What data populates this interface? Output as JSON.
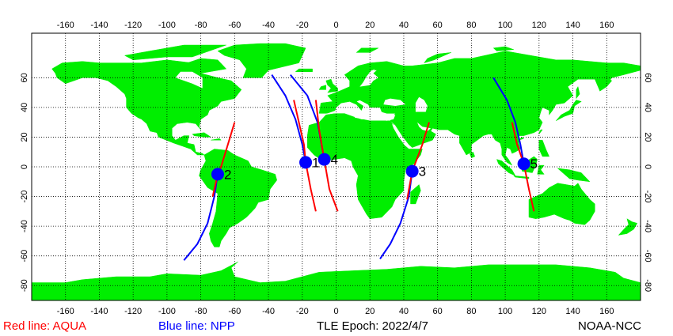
{
  "map": {
    "land_color": "#00ee00",
    "ocean_color": "#ffffff",
    "grid_color": "#000000",
    "lon_ticks": [
      -160,
      -140,
      -120,
      -100,
      -80,
      -60,
      -40,
      -20,
      0,
      20,
      40,
      60,
      80,
      100,
      120,
      140,
      160
    ],
    "lat_ticks": [
      60,
      40,
      20,
      0,
      -20,
      -40,
      -60,
      -80
    ],
    "lon_range": [
      -180,
      180
    ],
    "lat_range": [
      -90,
      90
    ]
  },
  "legend": {
    "aqua_label": "Red line: AQUA",
    "aqua_color": "#ff0000",
    "npp_label": "Blue line: NPP",
    "npp_color": "#0000ff",
    "epoch_label": "TLE Epoch: 2022/4/7",
    "credit_label": "NOAA-NCC"
  },
  "passes": [
    {
      "label": "1",
      "point": [
        -18,
        3
      ],
      "aqua": [
        [
          -25,
          45
        ],
        [
          -22,
          30
        ],
        [
          -19,
          15
        ],
        [
          -18,
          3
        ],
        [
          -15,
          -15
        ],
        [
          -12,
          -30
        ]
      ],
      "npp": [
        [
          -38,
          62
        ],
        [
          -30,
          48
        ],
        [
          -24,
          32
        ],
        [
          -20,
          15
        ],
        [
          -18,
          3
        ]
      ]
    },
    {
      "label": "2",
      "point": [
        -70,
        -5
      ],
      "aqua": [
        [
          -60,
          30
        ],
        [
          -64,
          15
        ],
        [
          -68,
          0
        ],
        [
          -70,
          -5
        ],
        [
          -73,
          -20
        ]
      ],
      "npp": [
        [
          -70,
          -5
        ],
        [
          -72,
          -20
        ],
        [
          -76,
          -38
        ],
        [
          -82,
          -52
        ],
        [
          -90,
          -63
        ]
      ]
    },
    {
      "label": "3",
      "point": [
        45,
        -3
      ],
      "aqua": [
        [
          55,
          30
        ],
        [
          51,
          15
        ],
        [
          47,
          3
        ],
        [
          45,
          -3
        ],
        [
          42,
          -22
        ]
      ],
      "npp": [
        [
          45,
          -3
        ],
        [
          43,
          -20
        ],
        [
          38,
          -38
        ],
        [
          32,
          -52
        ],
        [
          26,
          -62
        ]
      ]
    },
    {
      "label": "4",
      "point": [
        -7,
        5
      ],
      "aqua": [
        [
          -12,
          45
        ],
        [
          -10,
          25
        ],
        [
          -7,
          5
        ],
        [
          -4,
          -15
        ],
        [
          1,
          -30
        ]
      ],
      "npp": [
        [
          -27,
          62
        ],
        [
          -17,
          48
        ],
        [
          -11,
          30
        ],
        [
          -7,
          5
        ]
      ]
    },
    {
      "label": "5",
      "point": [
        111,
        2
      ],
      "aqua": [
        [
          104,
          30
        ],
        [
          107,
          15
        ],
        [
          111,
          2
        ],
        [
          114,
          -15
        ],
        [
          117,
          -30
        ]
      ],
      "npp": [
        [
          93,
          60
        ],
        [
          101,
          45
        ],
        [
          106,
          30
        ],
        [
          109,
          15
        ],
        [
          111,
          2
        ]
      ]
    }
  ]
}
